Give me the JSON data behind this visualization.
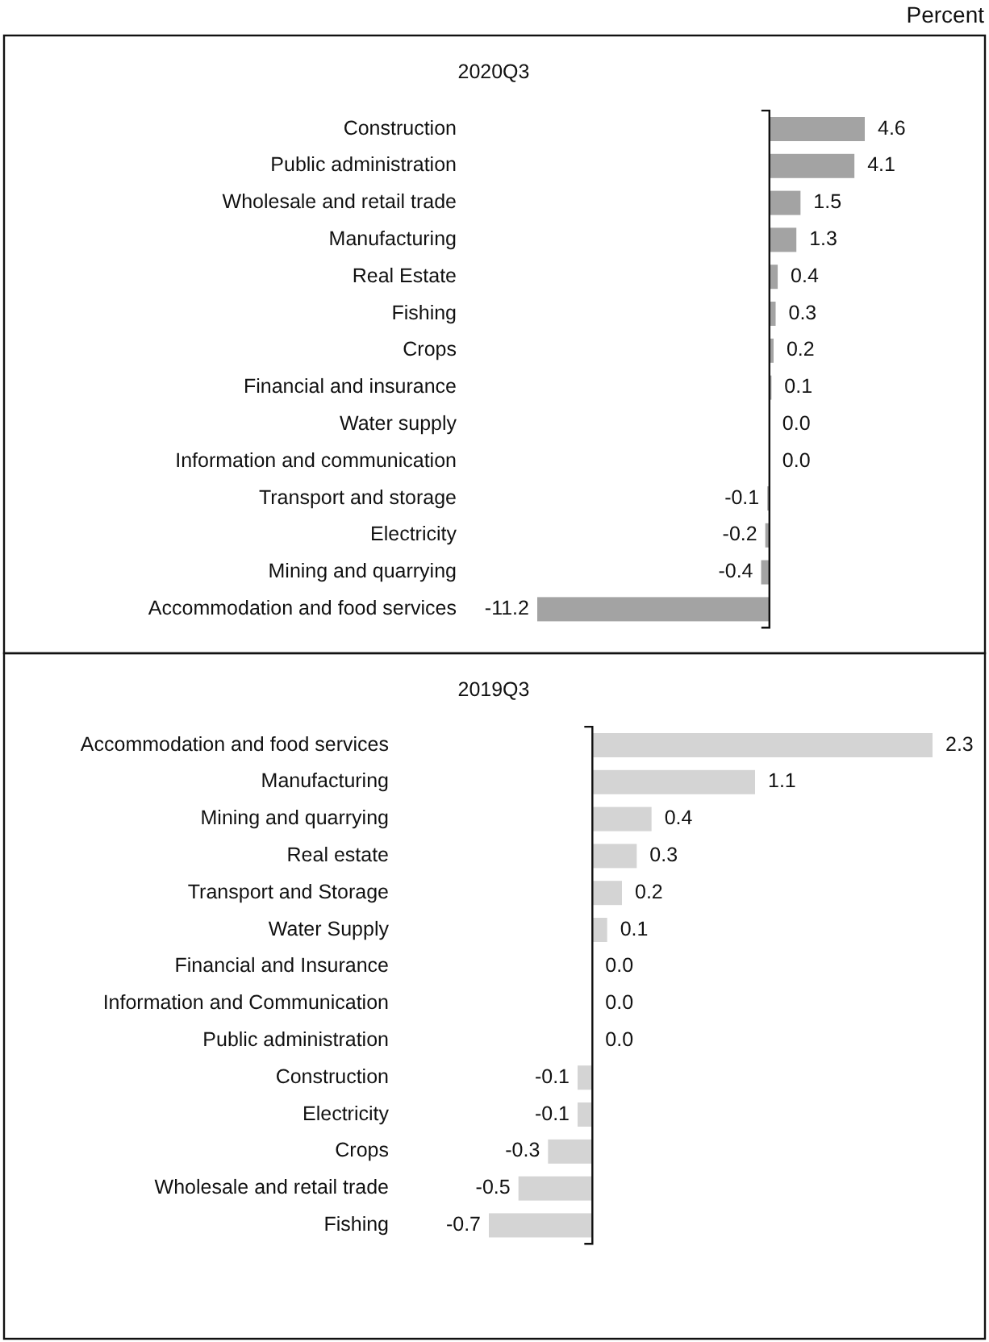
{
  "chart_data": [
    {
      "type": "bar",
      "orientation": "horizontal",
      "title": "2020Q3",
      "annotations": [
        "Percent"
      ],
      "color": "#a3a3a3",
      "categories": [
        "Construction",
        "Public administration",
        "Wholesale and retail trade",
        "Manufacturing",
        "Real Estate",
        "Fishing",
        "Crops",
        "Financial and insurance",
        "Water supply",
        "Information and communication",
        "Transport and storage",
        "Electricity",
        "Mining and quarrying",
        "Accommodation and food services"
      ],
      "values": [
        4.6,
        4.1,
        1.5,
        1.3,
        0.4,
        0.3,
        0.2,
        0.1,
        0.0,
        0.0,
        -0.1,
        -0.2,
        -0.4,
        -11.2
      ],
      "value_labels": [
        "4.6",
        "4.1",
        "1.5",
        "1.3",
        "0.4",
        "0.3",
        "0.2",
        "0.1",
        "0.0",
        "0.0",
        "-0.1",
        "-0.2",
        "-0.4",
        "-11.2"
      ],
      "ref_lines": [
        {
          "axis": "x",
          "value": 0,
          "color": "#111111"
        }
      ]
    },
    {
      "type": "bar",
      "orientation": "horizontal",
      "title": "2019Q3",
      "color": "#d4d4d4",
      "categories": [
        "Accommodation and food services",
        "Manufacturing",
        "Mining and quarrying",
        "Real estate",
        "Transport and Storage",
        "Water Supply",
        "Financial and Insurance",
        "Information and Communication",
        "Public administration",
        "Construction",
        "Electricity",
        "Crops",
        "Wholesale and retail trade",
        "Fishing"
      ],
      "values": [
        2.3,
        1.1,
        0.4,
        0.3,
        0.2,
        0.1,
        0.0,
        0.0,
        0.0,
        -0.1,
        -0.1,
        -0.3,
        -0.5,
        -0.7
      ],
      "value_labels": [
        "2.3",
        "1.1",
        "0.4",
        "0.3",
        "0.2",
        "0.1",
        "0.0",
        "0.0",
        "0.0",
        "-0.1",
        "-0.1",
        "-0.3",
        "-0.5",
        "-0.7"
      ],
      "ref_lines": [
        {
          "axis": "x",
          "value": 0,
          "color": "#111111"
        }
      ]
    }
  ]
}
